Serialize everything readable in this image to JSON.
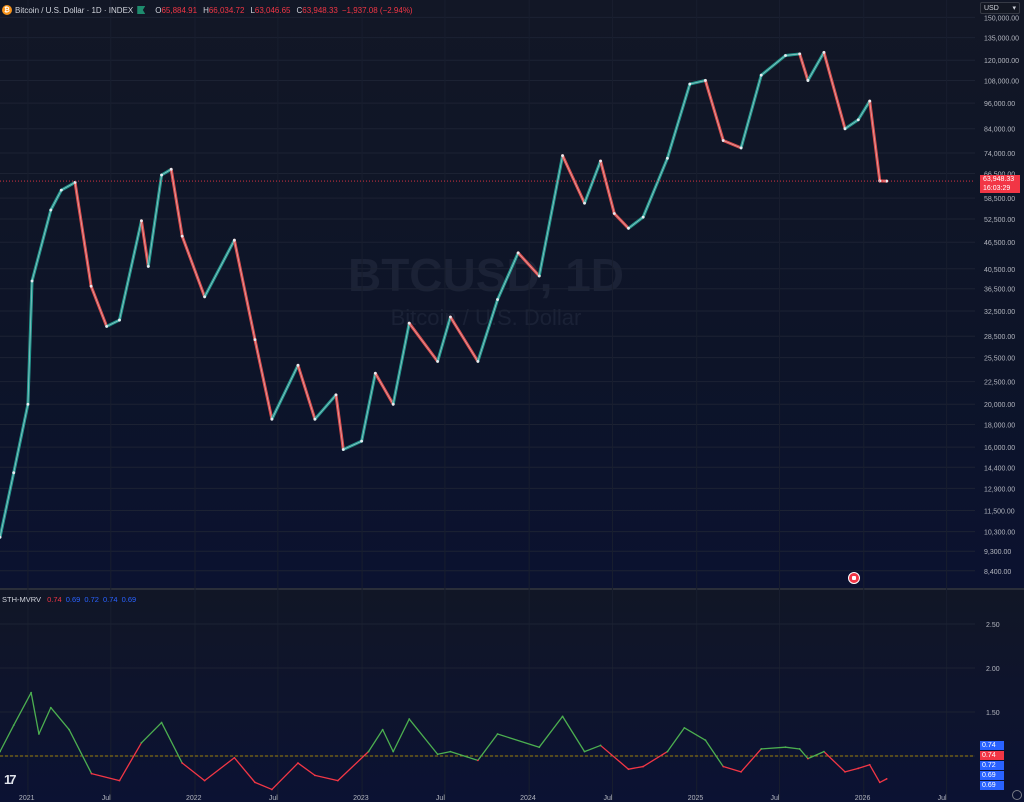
{
  "symbol": {
    "title": "Bitcoin / U.S. Dollar · 1D · INDEX",
    "logo_icon": "bitcoin-logo-icon",
    "open_label": "O",
    "open": "65,884.91",
    "high_label": "H",
    "high": "66,034.72",
    "low_label": "L",
    "low": "63,046.65",
    "close_label": "C",
    "close": "63,948.33",
    "change": "−1,937.08 (−2.94%)"
  },
  "currency": {
    "label": "USD",
    "chevron_icon": "chevron-down-icon"
  },
  "watermark": {
    "main": "BTCUSD, 1D",
    "sub": "Bitcoin / U.S. Dollar"
  },
  "last_price": {
    "value": "63,948.33",
    "countdown": "16:03:29"
  },
  "indicator": {
    "name": "STH-MVRV",
    "values": [
      {
        "text": "0.74",
        "color": "#f23645"
      },
      {
        "text": "0.69",
        "color": "#2962ff"
      },
      {
        "text": "0.72",
        "color": "#2962ff"
      },
      {
        "text": "0.74",
        "color": "#2962ff"
      },
      {
        "text": "0.69",
        "color": "#2962ff"
      }
    ],
    "scale_labels": [
      "2.50",
      "2.00",
      "1.50",
      "1.00"
    ],
    "badges": [
      {
        "text": "0.74",
        "color": "#2962ff"
      },
      {
        "text": "0.74",
        "color": "#f23645"
      },
      {
        "text": "0.72",
        "color": "#2962ff"
      },
      {
        "text": "0.69",
        "color": "#2962ff"
      },
      {
        "text": "0.69",
        "color": "#2962ff"
      }
    ]
  },
  "colors": {
    "up": "#26a69a",
    "down": "#ef5350",
    "mvrv_up": "#4caf50",
    "mvrv_down": "#f23645",
    "baseline": "#c8a000",
    "price_line": "#f23645"
  },
  "chart_data": {
    "type": "line",
    "title": "BTCUSD, 1D",
    "scale": "log",
    "price_axis_labels": [
      "150,000.00",
      "135,000.00",
      "120,000.00",
      "108,000.00",
      "96,000.00",
      "84,000.00",
      "74,000.00",
      "66,500.00",
      "58,500.00",
      "52,500.00",
      "46,500.00",
      "40,500.00",
      "36,500.00",
      "32,500.00",
      "28,500.00",
      "25,500.00",
      "22,500.00",
      "20,000.00",
      "18,000.00",
      "16,000.00",
      "14,400.00",
      "12,900.00",
      "11,500.00",
      "10,300.00",
      "9,300.00",
      "8,400.00"
    ],
    "time_axis_labels": [
      "2021",
      "Jul",
      "2022",
      "Jul",
      "2023",
      "Jul",
      "2024",
      "Jul",
      "2025",
      "Jul",
      "2026",
      "Jul"
    ],
    "x_range": [
      "2020-11-01",
      "2026-09-01"
    ],
    "series": [
      {
        "name": "BTCUSD",
        "points": [
          [
            "2020-11-01",
            10000
          ],
          [
            "2020-12-01",
            14000
          ],
          [
            "2021-01-01",
            20000
          ],
          [
            "2021-01-10",
            38000
          ],
          [
            "2021-02-20",
            55000
          ],
          [
            "2021-03-15",
            61000
          ],
          [
            "2021-04-14",
            63500
          ],
          [
            "2021-05-19",
            37000
          ],
          [
            "2021-06-22",
            30000
          ],
          [
            "2021-07-20",
            31000
          ],
          [
            "2021-09-06",
            52000
          ],
          [
            "2021-09-21",
            41000
          ],
          [
            "2021-10-20",
            66000
          ],
          [
            "2021-11-10",
            68000
          ],
          [
            "2021-12-04",
            48000
          ],
          [
            "2022-01-22",
            35000
          ],
          [
            "2022-03-28",
            47000
          ],
          [
            "2022-05-12",
            28000
          ],
          [
            "2022-06-18",
            18500
          ],
          [
            "2022-08-14",
            24500
          ],
          [
            "2022-09-20",
            18500
          ],
          [
            "2022-11-05",
            21000
          ],
          [
            "2022-11-21",
            15800
          ],
          [
            "2022-12-31",
            16500
          ],
          [
            "2023-01-30",
            23500
          ],
          [
            "2023-03-10",
            20000
          ],
          [
            "2023-04-14",
            30500
          ],
          [
            "2023-06-15",
            25000
          ],
          [
            "2023-07-13",
            31500
          ],
          [
            "2023-09-11",
            25000
          ],
          [
            "2023-10-24",
            34500
          ],
          [
            "2023-12-08",
            44000
          ],
          [
            "2024-01-23",
            39000
          ],
          [
            "2024-03-14",
            73000
          ],
          [
            "2024-05-01",
            57000
          ],
          [
            "2024-06-05",
            71000
          ],
          [
            "2024-07-05",
            54000
          ],
          [
            "2024-08-05",
            50000
          ],
          [
            "2024-09-06",
            53000
          ],
          [
            "2024-10-29",
            72000
          ],
          [
            "2024-12-17",
            106000
          ],
          [
            "2025-01-20",
            108000
          ],
          [
            "2025-02-28",
            79000
          ],
          [
            "2025-04-08",
            76000
          ],
          [
            "2025-05-22",
            111000
          ],
          [
            "2025-07-14",
            123000
          ],
          [
            "2025-08-14",
            124000
          ],
          [
            "2025-09-01",
            108000
          ],
          [
            "2025-10-06",
            125000
          ],
          [
            "2025-11-21",
            84000
          ],
          [
            "2025-12-20",
            88000
          ],
          [
            "2026-01-14",
            97000
          ],
          [
            "2026-02-05",
            64000
          ],
          [
            "2026-02-20",
            63948
          ]
        ]
      },
      {
        "name": "STH-MVRV",
        "points": [
          [
            "2020-11-01",
            1.05
          ],
          [
            "2020-12-01",
            1.35
          ],
          [
            "2021-01-08",
            1.72
          ],
          [
            "2021-01-25",
            1.25
          ],
          [
            "2021-02-20",
            1.55
          ],
          [
            "2021-04-01",
            1.3
          ],
          [
            "2021-05-20",
            0.8
          ],
          [
            "2021-07-20",
            0.72
          ],
          [
            "2021-09-06",
            1.15
          ],
          [
            "2021-10-20",
            1.38
          ],
          [
            "2021-12-04",
            0.92
          ],
          [
            "2022-01-22",
            0.72
          ],
          [
            "2022-03-28",
            0.98
          ],
          [
            "2022-05-12",
            0.7
          ],
          [
            "2022-06-18",
            0.62
          ],
          [
            "2022-08-14",
            0.92
          ],
          [
            "2022-09-20",
            0.78
          ],
          [
            "2022-11-09",
            0.72
          ],
          [
            "2023-01-15",
            1.05
          ],
          [
            "2023-02-15",
            1.3
          ],
          [
            "2023-03-10",
            1.05
          ],
          [
            "2023-04-14",
            1.42
          ],
          [
            "2023-06-15",
            1.02
          ],
          [
            "2023-07-13",
            1.05
          ],
          [
            "2023-09-11",
            0.95
          ],
          [
            "2023-10-24",
            1.25
          ],
          [
            "2024-01-23",
            1.1
          ],
          [
            "2024-03-14",
            1.45
          ],
          [
            "2024-05-01",
            1.05
          ],
          [
            "2024-06-05",
            1.12
          ],
          [
            "2024-08-05",
            0.85
          ],
          [
            "2024-09-06",
            0.88
          ],
          [
            "2024-10-29",
            1.05
          ],
          [
            "2024-12-05",
            1.32
          ],
          [
            "2025-01-20",
            1.18
          ],
          [
            "2025-02-28",
            0.88
          ],
          [
            "2025-04-08",
            0.82
          ],
          [
            "2025-05-22",
            1.08
          ],
          [
            "2025-07-14",
            1.1
          ],
          [
            "2025-08-14",
            1.08
          ],
          [
            "2025-09-01",
            0.97
          ],
          [
            "2025-10-06",
            1.05
          ],
          [
            "2025-11-21",
            0.82
          ],
          [
            "2025-12-20",
            0.86
          ],
          [
            "2026-01-14",
            0.9
          ],
          [
            "2026-02-05",
            0.7
          ],
          [
            "2026-02-20",
            0.74
          ]
        ]
      }
    ],
    "indicator_range": [
      0.5,
      2.75
    ],
    "indicator_baseline": 1.0,
    "indicator_scale_ticks": [
      2.5,
      2.0,
      1.5,
      1.0
    ],
    "price_range": [
      7800,
      160000
    ],
    "last_price": 63948.33,
    "grid": true,
    "legend": "top-left"
  }
}
